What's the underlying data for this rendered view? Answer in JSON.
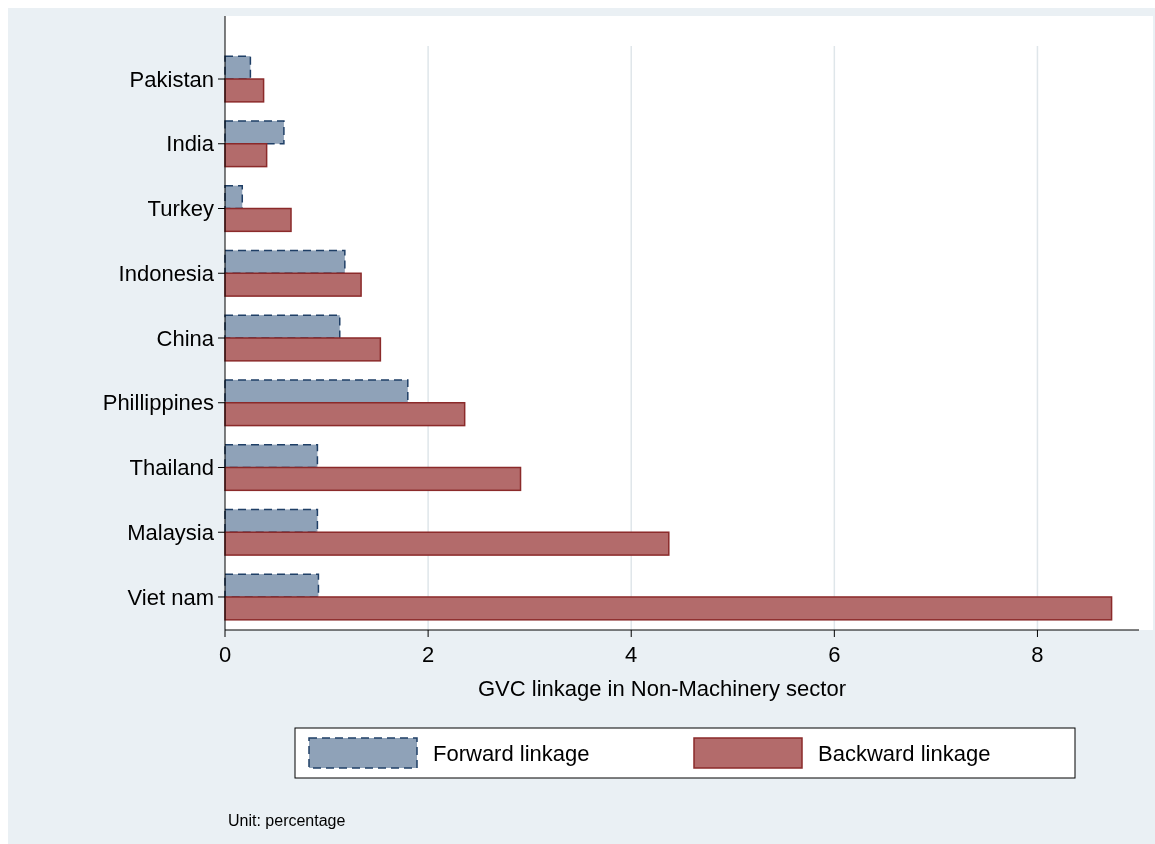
{
  "chart_data": {
    "type": "bar",
    "orientation": "horizontal",
    "xlabel": "GVC linkage in Non-Machinery sector",
    "categories": [
      "Pakistan",
      "India",
      "Turkey",
      "Indonesia",
      "China",
      "Phillippines",
      "Thailand",
      "Malaysia",
      "Viet nam"
    ],
    "series": [
      {
        "name": "Forward linkage",
        "color": "#8fa2b8",
        "line_style": "dashed",
        "values": [
          0.25,
          0.58,
          0.17,
          1.18,
          1.13,
          1.8,
          0.91,
          0.91,
          0.92
        ]
      },
      {
        "name": "Backward linkage",
        "color": "#b36b6b",
        "line_style": "solid",
        "values": [
          0.38,
          0.41,
          0.65,
          1.34,
          1.53,
          2.36,
          2.91,
          4.37,
          8.73
        ]
      }
    ],
    "xlim": [
      0,
      9
    ],
    "xticks": [
      0,
      2,
      4,
      6,
      8
    ],
    "grid": "x",
    "legend": "bottom",
    "annotations": [
      "Unit: percentage"
    ]
  }
}
